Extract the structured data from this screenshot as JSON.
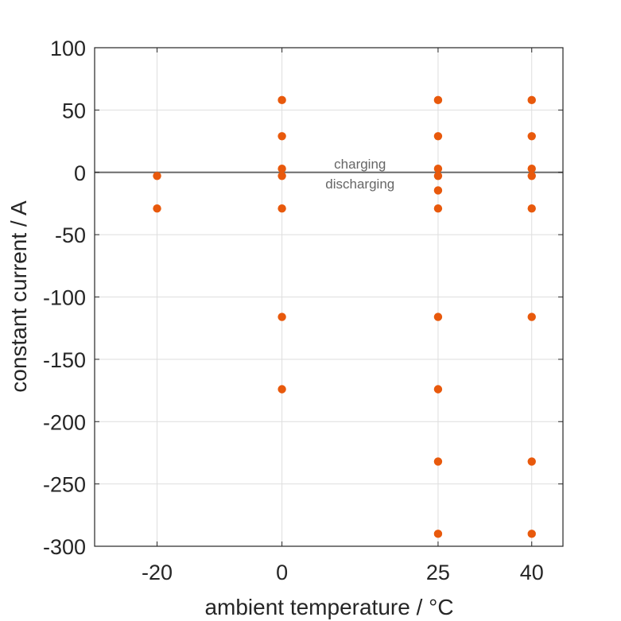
{
  "chart_data": {
    "type": "scatter",
    "xlabel": "ambient temperature / °C",
    "ylabel": "constant current / A",
    "xlim": [
      -30,
      45
    ],
    "ylim": [
      -300,
      100
    ],
    "x_ticks": [
      -20,
      0,
      25,
      40
    ],
    "x_tick_labels": [
      "-20",
      "0",
      "25",
      "40"
    ],
    "y_ticks": [
      100,
      50,
      0,
      -50,
      -100,
      -150,
      -200,
      -250,
      -300
    ],
    "y_tick_labels": [
      "100",
      "50",
      "0",
      "-50",
      "-100",
      "-150",
      "-200",
      "-250",
      "-300"
    ],
    "grid": true,
    "legend": "none",
    "marker_color": "#e8590c",
    "reference_line": {
      "y": 0,
      "color": "#6b6b6b"
    },
    "annotations": [
      {
        "text": "charging",
        "x": 12.5,
        "y": 7
      },
      {
        "text": "discharging",
        "x": 12.5,
        "y": -9
      }
    ],
    "series": [
      {
        "points": [
          [
            -20,
            -2.9
          ],
          [
            -20,
            -29
          ],
          [
            0,
            58
          ],
          [
            0,
            29
          ],
          [
            0,
            2.9
          ],
          [
            0,
            -2.9
          ],
          [
            0,
            -29
          ],
          [
            0,
            -116
          ],
          [
            0,
            -174
          ],
          [
            25,
            58
          ],
          [
            25,
            29
          ],
          [
            25,
            2.9
          ],
          [
            25,
            -2.9
          ],
          [
            25,
            -14.5
          ],
          [
            25,
            -29
          ],
          [
            25,
            -116
          ],
          [
            25,
            -174
          ],
          [
            25,
            -232
          ],
          [
            25,
            -290
          ],
          [
            40,
            58
          ],
          [
            40,
            29
          ],
          [
            40,
            2.9
          ],
          [
            40,
            -2.9
          ],
          [
            40,
            -29
          ],
          [
            40,
            -116
          ],
          [
            40,
            -232
          ],
          [
            40,
            -290
          ]
        ]
      }
    ]
  }
}
